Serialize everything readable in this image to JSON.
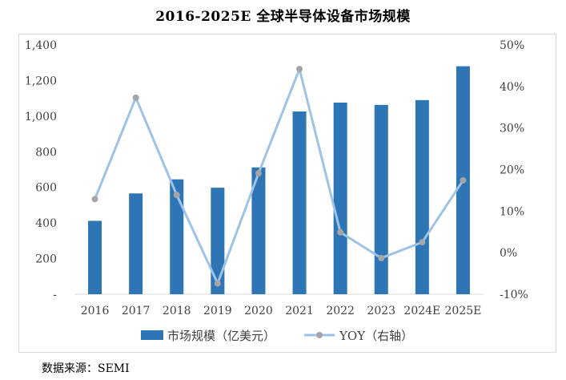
{
  "page_title": "2016-2025E 全球半导体设备市场规模",
  "source_note": "数据来源：SEMI",
  "colors": {
    "bar": "#2e75b6",
    "line": "#9dc3e6",
    "marker": "#a5a5a5",
    "axis": "#d9d9d9",
    "text": "#404040"
  },
  "chart_data": {
    "type": "bar+line",
    "title": "2016-2025E 全球半导体设备市场规模",
    "categories": [
      "2016",
      "2017",
      "2018",
      "2019",
      "2020",
      "2021",
      "2022",
      "2023",
      "2024E",
      "2025E"
    ],
    "series": [
      {
        "name": "市场规模（亿美元）",
        "type": "bar",
        "axis": "left",
        "values": [
          412,
          566,
          645,
          598,
          712,
          1026,
          1076,
          1063,
          1090,
          1280
        ]
      },
      {
        "name": "YOY（右轴）",
        "type": "line",
        "axis": "right",
        "values": [
          12.9,
          37.3,
          13.9,
          -7.4,
          19.1,
          44.2,
          4.9,
          -1.3,
          2.5,
          17.4
        ]
      }
    ],
    "y_left": {
      "min": 0,
      "max": 1400,
      "step": 200,
      "tick_labels": [
        "-",
        "200",
        "400",
        "600",
        "800",
        "1,000",
        "1,200",
        "1,400"
      ]
    },
    "y_right": {
      "min": -10,
      "max": 50,
      "step": 10,
      "tick_labels": [
        "-10%",
        "0%",
        "10%",
        "20%",
        "30%",
        "40%",
        "50%"
      ]
    },
    "legend_position": "bottom",
    "grid": false
  }
}
